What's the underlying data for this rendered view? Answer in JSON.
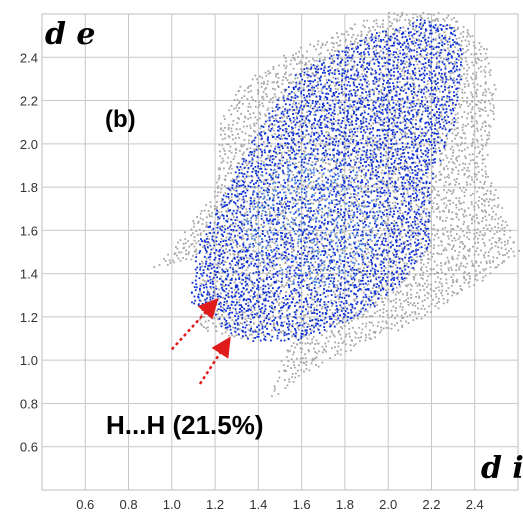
{
  "chart_data": {
    "type": "scatter",
    "title": "",
    "panel_label": "(b)",
    "xlabel": "d i",
    "ylabel": "d e",
    "xlim": [
      0.4,
      2.6
    ],
    "ylim": [
      0.4,
      2.6
    ],
    "x_ticks": [
      "0.6",
      "0.8",
      "1.0",
      "1.2",
      "1.4",
      "1.6",
      "1.8",
      "2.0",
      "2.2",
      "2.4"
    ],
    "y_ticks": [
      "0.6",
      "0.8",
      "1.0",
      "1.2",
      "1.4",
      "1.6",
      "1.8",
      "2.0",
      "2.2",
      "2.4"
    ],
    "grid": true,
    "annotation": {
      "text": "H...H (21.5%)",
      "arrows": [
        {
          "from": [
            1.0,
            1.05
          ],
          "to": [
            1.2,
            1.27
          ]
        },
        {
          "from": [
            1.13,
            0.89
          ],
          "to": [
            1.26,
            1.09
          ]
        }
      ]
    },
    "series": [
      {
        "role": "full_fingerprint",
        "color": "#a6a6a6",
        "outline_points": [
          [
            0.9,
            1.42
          ],
          [
            1.05,
            1.58
          ],
          [
            1.2,
            1.8
          ],
          [
            1.22,
            2.1
          ],
          [
            1.3,
            2.25
          ],
          [
            1.5,
            2.4
          ],
          [
            1.75,
            2.52
          ],
          [
            2.05,
            2.62
          ],
          [
            2.3,
            2.6
          ],
          [
            2.45,
            2.45
          ],
          [
            2.5,
            2.2
          ],
          [
            2.45,
            1.9
          ],
          [
            2.6,
            1.5
          ],
          [
            2.3,
            1.28
          ],
          [
            2.05,
            1.15
          ],
          [
            1.7,
            1.0
          ],
          [
            1.45,
            0.82
          ],
          [
            1.55,
            1.12
          ],
          [
            1.3,
            1.1
          ],
          [
            1.12,
            1.15
          ],
          [
            1.13,
            1.48
          ]
        ]
      },
      {
        "role": "H...H contacts",
        "color": "#0a2fd9",
        "outline_points": [
          [
            1.08,
            1.25
          ],
          [
            1.12,
            1.55
          ],
          [
            1.2,
            1.7
          ],
          [
            1.3,
            1.9
          ],
          [
            1.45,
            2.15
          ],
          [
            1.6,
            2.35
          ],
          [
            1.9,
            2.5
          ],
          [
            2.15,
            2.58
          ],
          [
            2.3,
            2.55
          ],
          [
            2.35,
            2.4
          ],
          [
            2.3,
            2.1
          ],
          [
            2.2,
            1.85
          ],
          [
            2.2,
            1.55
          ],
          [
            2.05,
            1.35
          ],
          [
            1.85,
            1.2
          ],
          [
            1.6,
            1.1
          ],
          [
            1.35,
            1.1
          ],
          [
            1.22,
            1.15
          ],
          [
            1.2,
            1.25
          ]
        ]
      }
    ]
  }
}
